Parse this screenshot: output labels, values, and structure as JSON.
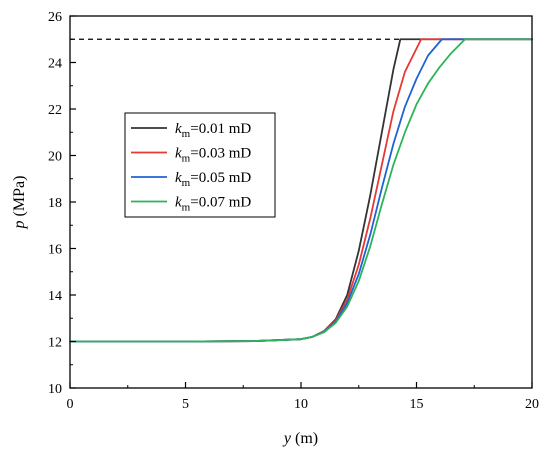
{
  "chart_data": {
    "type": "line",
    "title": "",
    "xlabel": {
      "symbol": "y",
      "unit": " (m)"
    },
    "ylabel": {
      "symbol": "p",
      "unit": " (MPa)"
    },
    "xlim": [
      0,
      20
    ],
    "ylim": [
      10,
      26
    ],
    "xticks": [
      0,
      5,
      10,
      15,
      20
    ],
    "yticks": [
      10,
      12,
      14,
      16,
      18,
      20,
      22,
      24,
      26
    ],
    "grid": false,
    "legend_position": "center-left",
    "reference_line": {
      "y": 25,
      "x": [
        0,
        20
      ],
      "style": "dashed",
      "color": "#000000"
    },
    "series": [
      {
        "name": {
          "symbol": "k",
          "sub": "m",
          "rest": "=0.01 mD"
        },
        "color": "#333333",
        "x": [
          0,
          5,
          8,
          10,
          10.5,
          11,
          11.5,
          12,
          12.5,
          13,
          13.5,
          14,
          14.3,
          15,
          20
        ],
        "y": [
          12,
          12,
          12.02,
          12.1,
          12.2,
          12.45,
          12.95,
          14.0,
          15.9,
          18.3,
          21.0,
          23.7,
          25,
          25,
          25
        ]
      },
      {
        "name": {
          "symbol": "k",
          "sub": "m",
          "rest": "=0.03 mD"
        },
        "color": "#e53935",
        "x": [
          0,
          5,
          8,
          10,
          10.5,
          11,
          11.5,
          12,
          12.5,
          13,
          13.5,
          14,
          14.5,
          15.2,
          20
        ],
        "y": [
          12,
          12,
          12.02,
          12.1,
          12.2,
          12.45,
          12.9,
          13.8,
          15.3,
          17.3,
          19.6,
          21.9,
          23.6,
          25,
          25
        ]
      },
      {
        "name": {
          "symbol": "k",
          "sub": "m",
          "rest": "=0.05 mD"
        },
        "color": "#1e63d6",
        "x": [
          0,
          5,
          8,
          10,
          10.5,
          11,
          11.5,
          12,
          12.5,
          13,
          13.5,
          14,
          14.5,
          15,
          15.5,
          16.1,
          20
        ],
        "y": [
          12,
          12,
          12.02,
          12.1,
          12.2,
          12.42,
          12.85,
          13.65,
          14.9,
          16.6,
          18.6,
          20.5,
          22.1,
          23.3,
          24.3,
          25,
          25
        ]
      },
      {
        "name": {
          "symbol": "k",
          "sub": "m",
          "rest": "=0.07 mD"
        },
        "color": "#2db35a",
        "x": [
          0,
          5,
          8,
          10,
          10.5,
          11,
          11.5,
          12,
          12.5,
          13,
          13.5,
          14,
          14.5,
          15,
          15.5,
          16,
          16.5,
          17.1,
          20
        ],
        "y": [
          12,
          12,
          12.02,
          12.1,
          12.2,
          12.4,
          12.8,
          13.5,
          14.6,
          16.1,
          17.9,
          19.6,
          21.0,
          22.2,
          23.1,
          23.8,
          24.4,
          25,
          25
        ]
      }
    ]
  }
}
